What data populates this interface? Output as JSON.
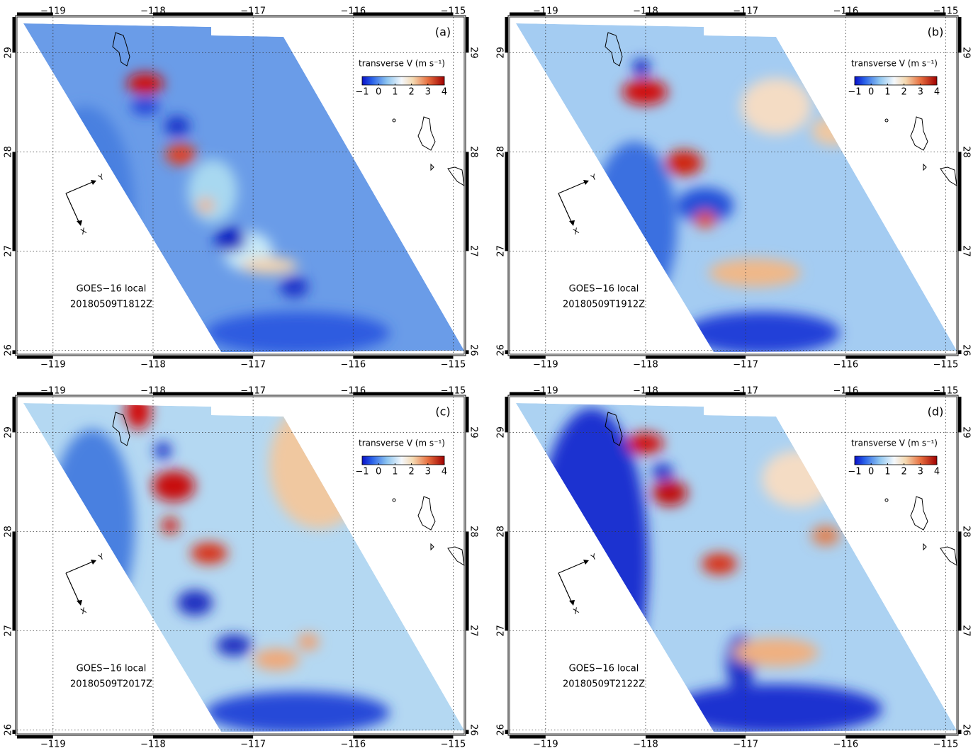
{
  "lon_range": [
    -119.36,
    -114.89
  ],
  "lat_range": [
    25.96,
    29.36
  ],
  "lon_ticks": [
    {
      "value": -119,
      "label": "−119"
    },
    {
      "value": -118,
      "label": "−118"
    },
    {
      "value": -117,
      "label": "−117"
    },
    {
      "value": -116,
      "label": "−116"
    },
    {
      "value": -115,
      "label": "−115"
    }
  ],
  "lat_ticks": [
    26,
    27,
    28,
    29
  ],
  "colorbar": {
    "title": "transverse V (m s⁻¹)",
    "range": [
      -1,
      4
    ],
    "ticks": [
      {
        "value": -1,
        "label": "−1"
      },
      0,
      1,
      2,
      3,
      4
    ]
  },
  "frame_axes": {
    "along": "Y",
    "across": "X"
  },
  "panels": [
    {
      "label": "(a)",
      "source": "GOES−16 local",
      "time": "20180509T1812Z"
    },
    {
      "label": "(b)",
      "source": "GOES−16 local",
      "time": "20180509T1912Z"
    },
    {
      "label": "(c)",
      "source": "GOES−16 local",
      "time": "20180509T2017Z"
    },
    {
      "label": "(d)",
      "source": "GOES−16 local",
      "time": "20180509T2122Z"
    }
  ]
}
